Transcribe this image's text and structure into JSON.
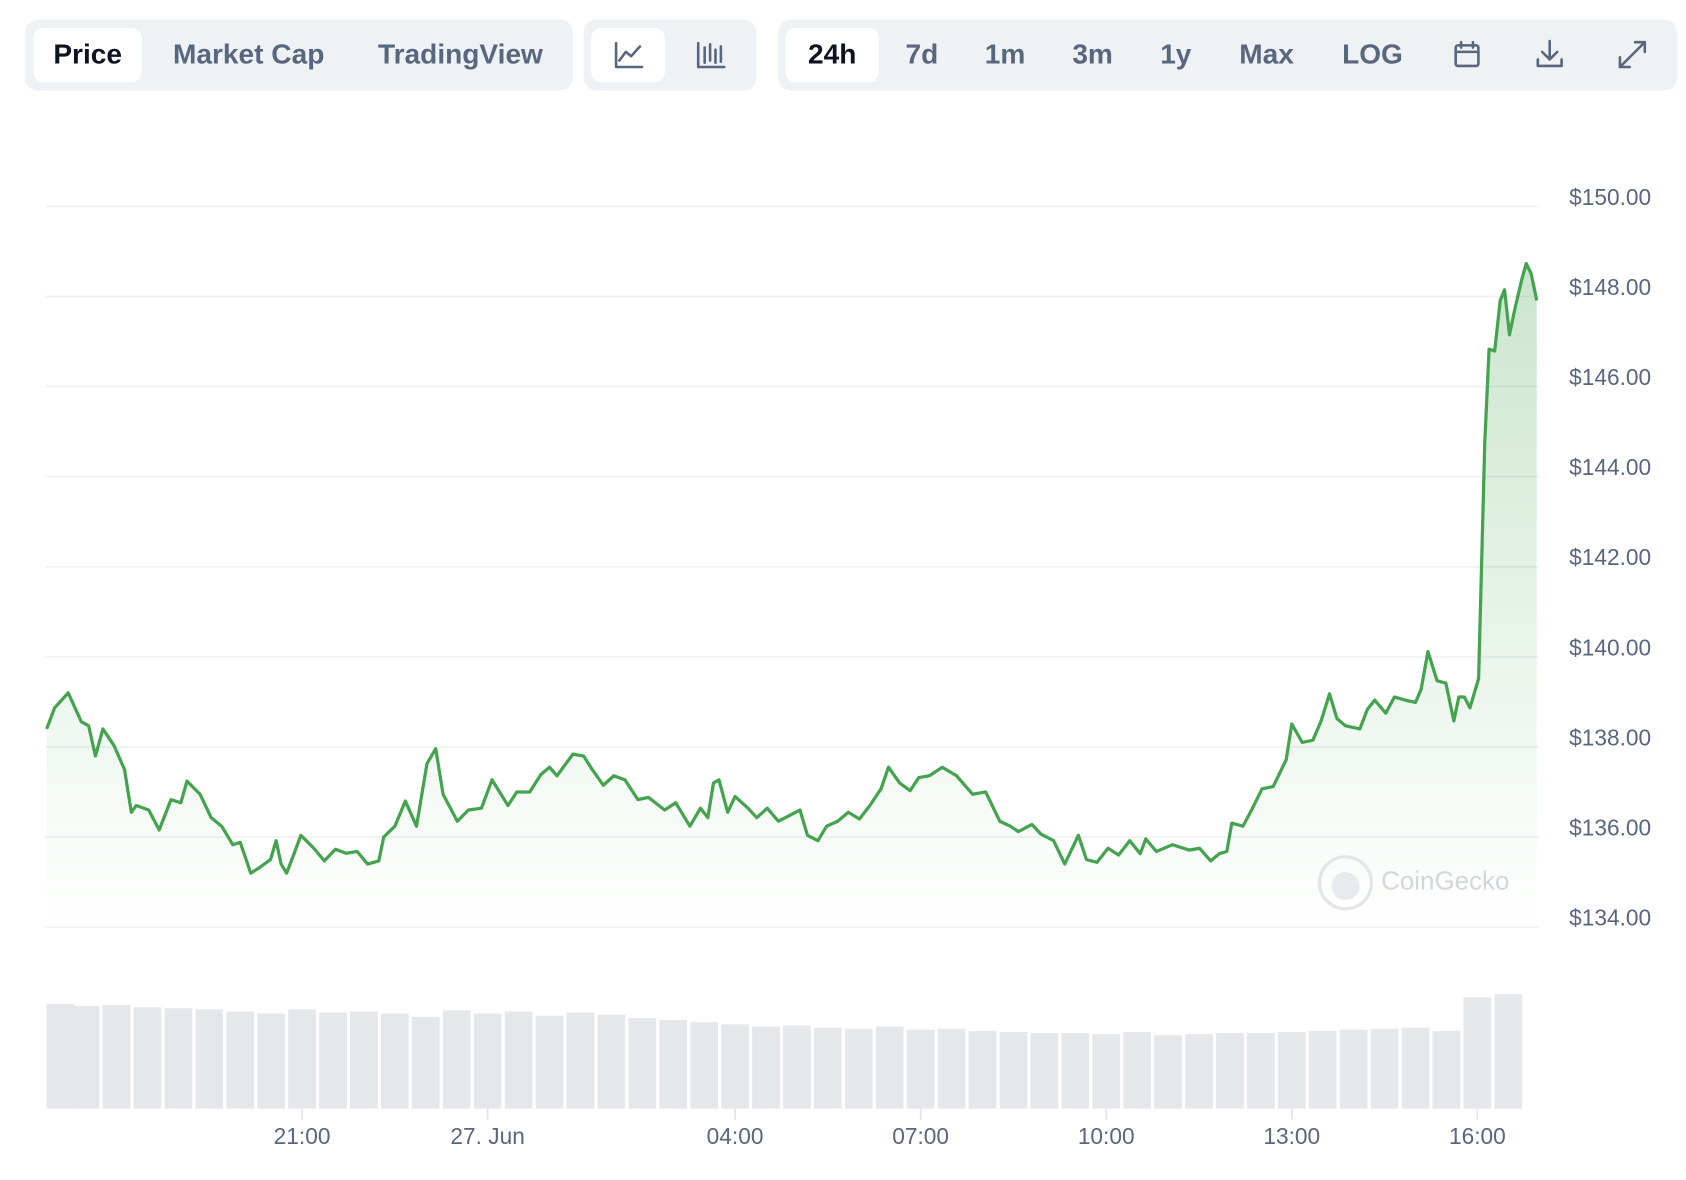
{
  "toolbar": {
    "tabs": [
      "Price",
      "Market Cap",
      "TradingView"
    ],
    "ranges": [
      "24h",
      "7d",
      "1m",
      "3m",
      "1y",
      "Max",
      "LOG"
    ]
  },
  "watermark": "CoinGecko",
  "chart_data": {
    "type": "area",
    "color": "#45a34f",
    "grid": true,
    "x": [
      -7.13,
      -7.0,
      -6.78,
      -6.57,
      -6.45,
      -6.34,
      -6.22,
      -6.04,
      -5.87,
      -5.76,
      -5.68,
      -5.48,
      -5.31,
      -5.12,
      -4.96,
      -4.86,
      -4.65,
      -4.47,
      -4.3,
      -4.12,
      -4.0,
      -3.83,
      -3.69,
      -3.51,
      -3.42,
      -3.34,
      -3.25,
      -3.13,
      -3.02,
      -2.81,
      -2.64,
      -2.46,
      -2.29,
      -2.11,
      -1.94,
      -1.76,
      -1.68,
      -1.5,
      -1.33,
      -1.15,
      -0.98,
      -0.84,
      -0.72,
      -0.49,
      -0.31,
      -0.1,
      0.07,
      0.33,
      0.47,
      0.68,
      0.86,
      1.0,
      1.12,
      1.38,
      1.55,
      1.69,
      1.87,
      2.04,
      2.22,
      2.43,
      2.6,
      2.86,
      3.04,
      3.27,
      3.44,
      3.56,
      3.65,
      3.74,
      3.88,
      4.0,
      4.21,
      4.35,
      4.52,
      4.7,
      4.87,
      5.05,
      5.17,
      5.34,
      5.48,
      5.66,
      5.83,
      6.01,
      6.18,
      6.36,
      6.48,
      6.66,
      6.83,
      6.97,
      7.14,
      7.35,
      7.58,
      7.84,
      8.05,
      8.28,
      8.45,
      8.58,
      8.8,
      8.94,
      9.15,
      9.33,
      9.55,
      9.68,
      9.85,
      10.03,
      10.2,
      10.38,
      10.55,
      10.64,
      10.81,
      11.07,
      11.34,
      11.51,
      11.69,
      11.83,
      11.95,
      12.03,
      12.21,
      12.35,
      12.52,
      12.7,
      12.91,
      13.0,
      13.17,
      13.34,
      13.47,
      13.61,
      13.73,
      13.87,
      14.1,
      14.22,
      14.34,
      14.52,
      14.66,
      14.83,
      15.0,
      15.09,
      15.2,
      15.35,
      15.49,
      15.62,
      15.7,
      15.79,
      15.88,
      16.02,
      16.12,
      16.19,
      16.28,
      16.37,
      16.44,
      16.52,
      16.61,
      16.72,
      16.79,
      16.87,
      16.96
    ],
    "values": [
      138.4,
      138.87,
      139.2,
      138.56,
      138.47,
      137.8,
      138.4,
      138.03,
      137.5,
      136.55,
      136.7,
      136.6,
      136.16,
      136.83,
      136.76,
      137.24,
      136.95,
      136.43,
      136.24,
      135.83,
      135.88,
      135.2,
      135.32,
      135.5,
      135.92,
      135.4,
      135.2,
      135.63,
      136.04,
      135.75,
      135.47,
      135.73,
      135.64,
      135.68,
      135.4,
      135.47,
      136.0,
      136.24,
      136.8,
      136.24,
      137.63,
      137.96,
      136.95,
      136.35,
      136.6,
      136.64,
      137.27,
      136.7,
      137.0,
      137.0,
      137.39,
      137.55,
      137.36,
      137.84,
      137.8,
      137.5,
      137.15,
      137.36,
      137.27,
      136.83,
      136.88,
      136.6,
      136.76,
      136.24,
      136.64,
      136.43,
      137.2,
      137.27,
      136.55,
      136.9,
      136.64,
      136.43,
      136.64,
      136.35,
      136.47,
      136.6,
      136.04,
      135.92,
      136.24,
      136.35,
      136.55,
      136.4,
      136.7,
      137.07,
      137.55,
      137.2,
      137.03,
      137.32,
      137.36,
      137.55,
      137.36,
      136.95,
      137.0,
      136.35,
      136.24,
      136.12,
      136.28,
      136.07,
      135.92,
      135.4,
      136.04,
      135.5,
      135.44,
      135.75,
      135.6,
      135.92,
      135.63,
      135.96,
      135.68,
      135.83,
      135.71,
      135.75,
      135.47,
      135.63,
      135.68,
      136.31,
      136.24,
      136.6,
      137.07,
      137.12,
      137.72,
      138.51,
      138.1,
      138.15,
      138.56,
      139.18,
      138.63,
      138.47,
      138.4,
      138.83,
      139.04,
      138.75,
      139.11,
      139.04,
      138.99,
      139.28,
      140.12,
      139.47,
      139.42,
      138.58,
      139.11,
      139.11,
      138.87,
      139.52,
      144.75,
      146.83,
      146.79,
      147.91,
      148.15,
      147.15,
      147.75,
      148.39,
      148.73,
      148.51,
      147.91
    ],
    "xlim": [
      -7.13,
      16.96
    ],
    "xticks": [
      {
        "value": -3,
        "label": "21:00"
      },
      {
        "value": 0,
        "label": "27. Jun"
      },
      {
        "value": 4,
        "label": "04:00"
      },
      {
        "value": 7,
        "label": "07:00"
      },
      {
        "value": 10,
        "label": "10:00"
      },
      {
        "value": 13,
        "label": "13:00"
      },
      {
        "value": 16,
        "label": "16:00"
      }
    ],
    "ylim": [
      134,
      150
    ],
    "yticks": [
      {
        "value": 134,
        "label": "$134.00"
      },
      {
        "value": 136,
        "label": "$136.00"
      },
      {
        "value": 138,
        "label": "$138.00"
      },
      {
        "value": 140,
        "label": "$140.00"
      },
      {
        "value": 142,
        "label": "$142.00"
      },
      {
        "value": 144,
        "label": "$144.00"
      },
      {
        "value": 146,
        "label": "$146.00"
      },
      {
        "value": 148,
        "label": "$148.00"
      },
      {
        "value": 150,
        "label": "$150.00"
      }
    ],
    "volume": {
      "type": "bar",
      "color": "#e5e7eb",
      "ylim": [
        0,
        110
      ],
      "x": [
        -7,
        -6.5,
        -6,
        -5.5,
        -5,
        -4.5,
        -4,
        -3.5,
        -3,
        -2.5,
        -2,
        -1.5,
        -1,
        -0.5,
        0,
        0.5,
        1,
        1.5,
        2,
        2.5,
        3,
        3.5,
        4,
        4.5,
        5,
        5.5,
        6,
        6.5,
        7,
        7.5,
        8,
        8.5,
        9,
        9.5,
        10,
        10.5,
        11,
        11.5,
        12,
        12.5,
        13,
        13.5,
        14,
        14.5,
        15,
        15.5,
        16,
        16.5
      ],
      "values": [
        97,
        95,
        96,
        94,
        93,
        92,
        90,
        88,
        92,
        89,
        90,
        88,
        85,
        91,
        88,
        90,
        86,
        89,
        87,
        84,
        82,
        80,
        78,
        76,
        77,
        75,
        74,
        76,
        73,
        74,
        72,
        71,
        70,
        70,
        69,
        71,
        68,
        69,
        70,
        70,
        71,
        72,
        73,
        74,
        75,
        72,
        103,
        106
      ]
    }
  }
}
